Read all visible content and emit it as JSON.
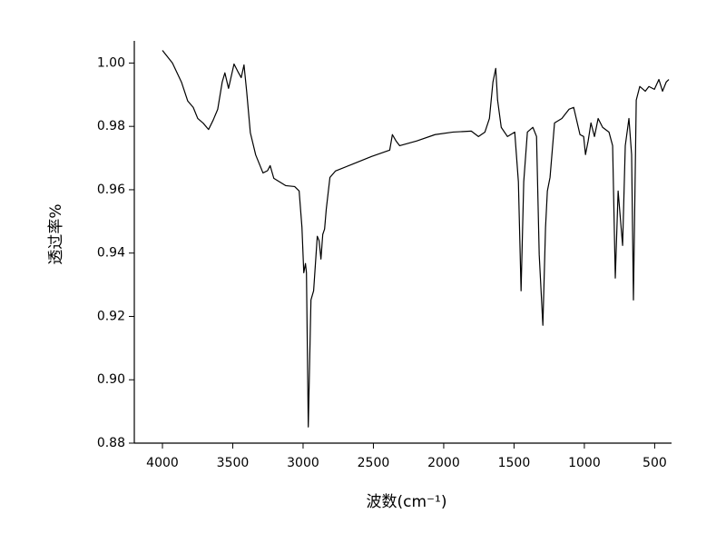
{
  "chart_data": {
    "type": "line",
    "x_label": "波数(cm⁻¹)",
    "y_label": "透过率%",
    "xlim": [
      4200,
      380
    ],
    "ylim": [
      0.88,
      1.007
    ],
    "xticks": [
      4000,
      3500,
      3000,
      2500,
      2000,
      1500,
      1000,
      500
    ],
    "yticks": [
      0.88,
      {
        "value": 0.9,
        "label": "0.90"
      },
      0.92,
      0.94,
      0.96,
      0.98,
      {
        "value": 1,
        "label": "1.00"
      }
    ],
    "series": [
      {
        "color": "#000000",
        "x": [
          4000,
          3929,
          3865,
          3820,
          3781,
          3749,
          3710,
          3672,
          3639,
          3607,
          3575,
          3556,
          3530,
          3491,
          3459,
          3440,
          3420,
          3401,
          3375,
          3337,
          3285,
          3253,
          3234,
          3208,
          3124,
          3060,
          3028,
          3008,
          2995,
          2983,
          2976,
          2963,
          2944,
          2925,
          2899,
          2886,
          2873,
          2860,
          2847,
          2835,
          2809,
          2770,
          2641,
          2513,
          2384,
          2365,
          2339,
          2313,
          2191,
          2062,
          1933,
          1804,
          1753,
          1707,
          1675,
          1650,
          1630,
          1617,
          1591,
          1547,
          1495,
          1469,
          1450,
          1431,
          1405,
          1366,
          1340,
          1321,
          1295,
          1276,
          1263,
          1244,
          1212,
          1160,
          1109,
          1076,
          1031,
          1005,
          992,
          973,
          953,
          928,
          902,
          870,
          825,
          799,
          780,
          760,
          728,
          709,
          683,
          664,
          651,
          631,
          606,
          567,
          541,
          502,
          470,
          444,
          418,
          399
        ],
        "values": [
          1.004,
          1.0,
          0.994,
          0.988,
          0.986,
          0.9825,
          0.981,
          0.979,
          0.982,
          0.9854,
          0.994,
          0.9969,
          0.992,
          0.9997,
          0.9969,
          0.9954,
          0.9994,
          0.991,
          0.978,
          0.971,
          0.9653,
          0.966,
          0.9676,
          0.9636,
          0.9613,
          0.961,
          0.9596,
          0.9481,
          0.9338,
          0.9367,
          0.9338,
          0.8851,
          0.9252,
          0.9281,
          0.9453,
          0.9439,
          0.9381,
          0.9459,
          0.9476,
          0.9539,
          0.9639,
          0.9659,
          0.9682,
          0.9705,
          0.9725,
          0.9774,
          0.9754,
          0.9739,
          0.9754,
          0.9774,
          0.9782,
          0.9785,
          0.9768,
          0.9782,
          0.9825,
          0.994,
          0.9983,
          0.9883,
          0.9797,
          0.9768,
          0.9782,
          0.9625,
          0.9281,
          0.9625,
          0.9782,
          0.9797,
          0.9768,
          0.9395,
          0.9172,
          0.9481,
          0.9596,
          0.9639,
          0.9811,
          0.9825,
          0.9854,
          0.986,
          0.9774,
          0.9768,
          0.9711,
          0.9754,
          0.9811,
          0.9768,
          0.9825,
          0.9797,
          0.9782,
          0.9739,
          0.9321,
          0.9596,
          0.9424,
          0.9739,
          0.9825,
          0.9711,
          0.9252,
          0.9883,
          0.9926,
          0.9911,
          0.9926,
          0.9917,
          0.9948,
          0.9911,
          0.994,
          0.9948
        ]
      }
    ]
  }
}
